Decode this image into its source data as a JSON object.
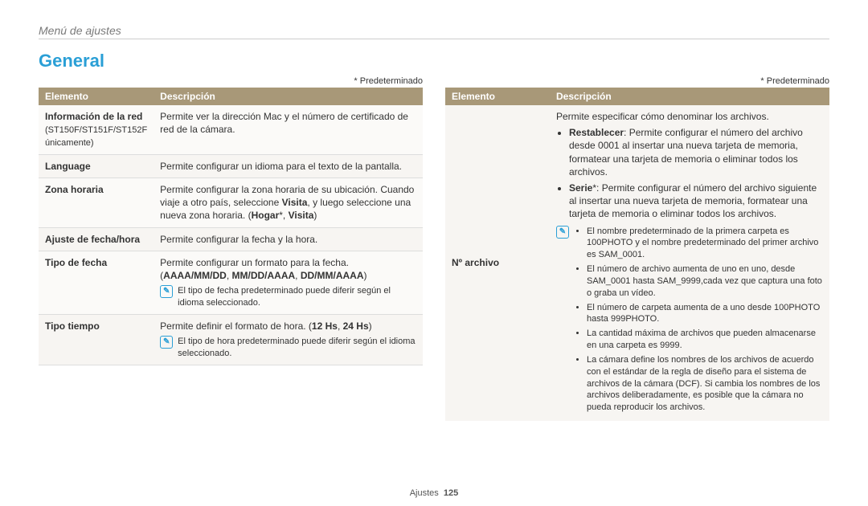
{
  "breadcrumb": "Menú de ajustes",
  "heading": "General",
  "default_note": "* Predeterminado",
  "table_headers": {
    "elemento": "Elemento",
    "descripcion": "Descripción"
  },
  "left_rows": [
    {
      "elemento_html": "Información de la red<br><span class='subnote'>(ST150F/ST151F/ST152F únicamente)</span>",
      "desc_html": "Permite ver la dirección Mac y el número de certificado de red de la cámara."
    },
    {
      "elemento_html": "Language",
      "desc_html": "Permite configurar un idioma para el texto de la pantalla."
    },
    {
      "elemento_html": "Zona horaria",
      "desc_html": "Permite configurar la zona horaria de su ubicación. Cuando viaje a otro país, seleccione <b>Visita</b>, y luego seleccione una nueva zona horaria. (<b>Hogar</b>*, <b>Visita</b>)"
    },
    {
      "elemento_html": "Ajuste de fecha/hora",
      "desc_html": "Permite configurar la fecha y la hora."
    },
    {
      "elemento_html": "Tipo de fecha",
      "desc_html": "Permite configurar un formato para la fecha.<br>(<b>AAAA/MM/DD</b>, <b>MM/DD/AAAA</b>, <b>DD/MM/AAAA</b>)",
      "note": "El tipo de fecha predeterminado puede diferir según el idioma seleccionado."
    },
    {
      "elemento_html": "Tipo tiempo",
      "desc_html": "Permite definir el formato de hora. (<b>12 Hs</b>, <b>24 Hs</b>)",
      "note": "El tipo de hora predeterminado puede diferir según el idioma seleccionado."
    }
  ],
  "right_row": {
    "elemento": "Nº archivo",
    "intro": "Permite especificar cómo denominar los archivos.",
    "bullets": [
      "<b>Restablecer</b>: Permite configurar el número del archivo desde 0001 al insertar una nueva tarjeta de memoria, formatear una tarjeta de memoria o eliminar todos los archivos.",
      "<b>Serie</b>*: Permite configurar el número del archivo siguiente al insertar una nueva tarjeta de memoria, formatear una tarjeta de memoria o eliminar todos los archivos."
    ],
    "sub_bullets": [
      "El nombre predeterminado de la primera carpeta es 100PHOTO y el nombre predeterminado del primer archivo es SAM_0001.",
      "El número de archivo aumenta de uno en uno, desde SAM_0001 hasta SAM_9999,cada vez que captura una foto o graba un vídeo.",
      "El número de carpeta aumenta de a uno desde 100PHOTO hasta 999PHOTO.",
      "La cantidad máxima de archivos que pueden almacenarse en una carpeta es 9999.",
      "La cámara define los nombres de los archivos de acuerdo con el estándar de la regla de diseño para el sistema de archivos de la cámara (DCF). Si cambia los nombres de los archivos deliberadamente, es posible que la cámara no pueda reproducir los archivos."
    ]
  },
  "footer": {
    "section": "Ajustes",
    "page": "125"
  },
  "colors": {
    "accent": "#2a9fd6",
    "header_bg": "#a89878",
    "row_alt": "#f7f5f2"
  }
}
